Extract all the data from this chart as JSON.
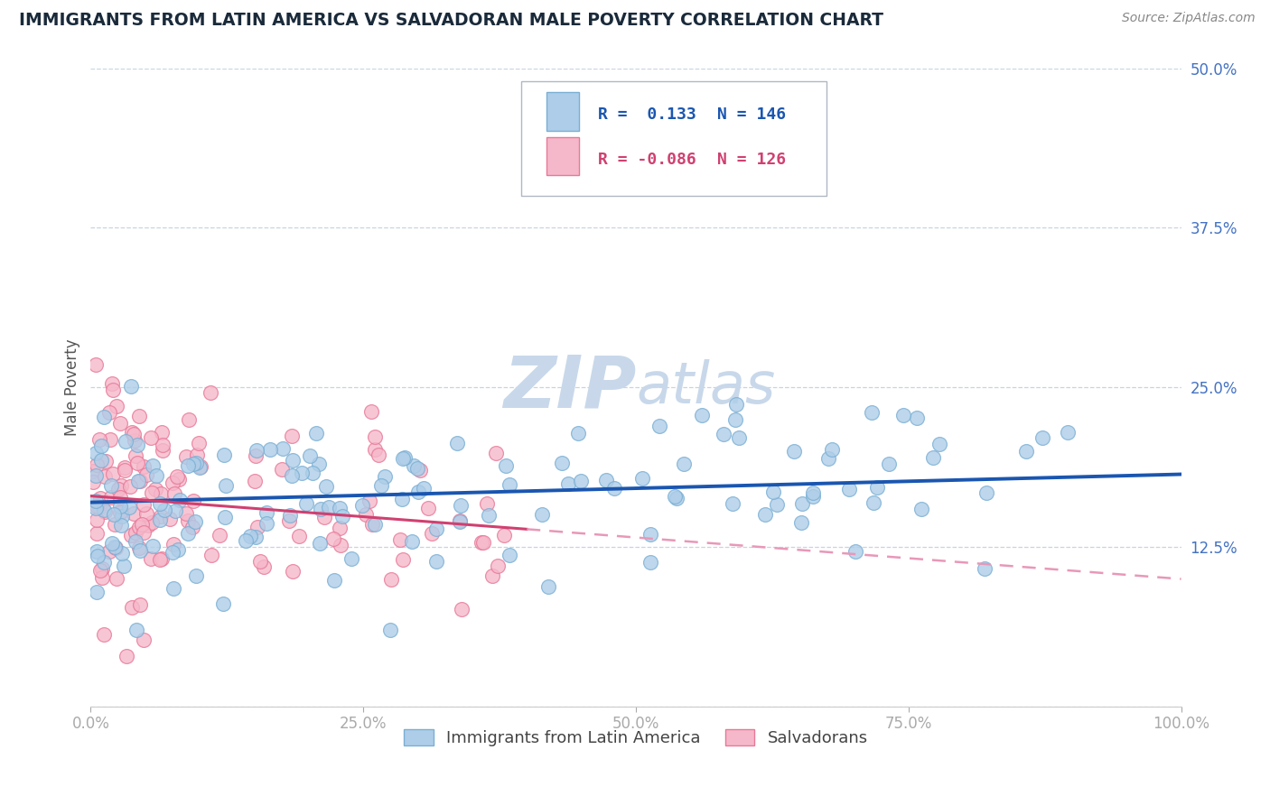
{
  "title": "IMMIGRANTS FROM LATIN AMERICA VS SALVADORAN MALE POVERTY CORRELATION CHART",
  "source": "Source: ZipAtlas.com",
  "ylabel": "Male Poverty",
  "xlim": [
    0,
    100
  ],
  "ylim": [
    0,
    50
  ],
  "yticks": [
    0,
    12.5,
    25.0,
    37.5,
    50.0
  ],
  "xticks": [
    0,
    25,
    50,
    75,
    100
  ],
  "xtick_labels": [
    "0.0%",
    "25.0%",
    "50.0%",
    "75.0%",
    "100.0%"
  ],
  "ytick_labels": [
    "",
    "12.5%",
    "25.0%",
    "37.5%",
    "50.0%"
  ],
  "series1_label": "Immigrants from Latin America",
  "series1_R": 0.133,
  "series1_N": 146,
  "series1_fill": "#aecde8",
  "series1_edge": "#7aafd4",
  "series2_label": "Salvadorans",
  "series2_R": -0.086,
  "series2_N": 126,
  "series2_fill": "#f5b8ca",
  "series2_edge": "#e87898",
  "trend1_color": "#1a56b0",
  "trend2_solid_color": "#d04070",
  "trend2_dash_color": "#e898b8",
  "watermark_zip": "ZIP",
  "watermark_atlas": "atlas",
  "watermark_color": "#c8d8ea",
  "legend_R1": "R =  0.133",
  "legend_N1": "N = 146",
  "legend_R2": "R = -0.086",
  "legend_N2": "N = 126",
  "legend_color1": "#1a56b0",
  "legend_color2": "#d04070",
  "grid_color": "#c8d4e0",
  "background_color": "#ffffff",
  "title_color": "#1a2a3a",
  "ylabel_color": "#555555",
  "tick_color": "#4472c4",
  "source_color": "#888888",
  "trend1_intercept": 16.0,
  "trend1_slope": 0.022,
  "trend2_intercept": 16.5,
  "trend2_slope": -0.065
}
